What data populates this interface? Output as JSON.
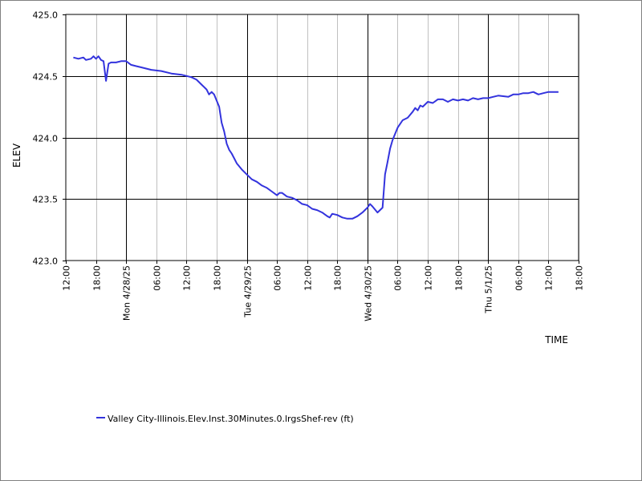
{
  "chart_data": {
    "type": "line",
    "xlabel": "TIME",
    "ylabel": "ELEV",
    "ylim": [
      423.0,
      425.0
    ],
    "xlim": [
      "2025-04-27 12:00",
      "2025-05-01 18:00"
    ],
    "y_ticks": [
      "423.0",
      "423.5",
      "424.0",
      "424.5",
      "425.0"
    ],
    "x_ticks": [
      {
        "t": "2025-04-27 12:00",
        "label": "12:00"
      },
      {
        "t": "2025-04-27 18:00",
        "label": "18:00"
      },
      {
        "t": "2025-04-28 00:00",
        "label": "Mon 4/28/25"
      },
      {
        "t": "2025-04-28 06:00",
        "label": "06:00"
      },
      {
        "t": "2025-04-28 12:00",
        "label": "12:00"
      },
      {
        "t": "2025-04-28 18:00",
        "label": "18:00"
      },
      {
        "t": "2025-04-29 00:00",
        "label": "Tue 4/29/25"
      },
      {
        "t": "2025-04-29 06:00",
        "label": "06:00"
      },
      {
        "t": "2025-04-29 12:00",
        "label": "12:00"
      },
      {
        "t": "2025-04-29 18:00",
        "label": "18:00"
      },
      {
        "t": "2025-04-30 00:00",
        "label": "Wed 4/30/25"
      },
      {
        "t": "2025-04-30 06:00",
        "label": "06:00"
      },
      {
        "t": "2025-04-30 12:00",
        "label": "12:00"
      },
      {
        "t": "2025-04-30 18:00",
        "label": "18:00"
      },
      {
        "t": "2025-05-01 00:00",
        "label": "Thu 5/1/25"
      },
      {
        "t": "2025-05-01 06:00",
        "label": "06:00"
      },
      {
        "t": "2025-05-01 12:00",
        "label": "12:00"
      },
      {
        "t": "2025-05-01 18:00",
        "label": "18:00"
      }
    ],
    "grid": true,
    "legend_position": "bottom-left",
    "series": [
      {
        "name": "Valley City-Illinois.Elev.Inst.30Minutes.0.lrgsShef-rev (ft)",
        "color": "#3333dd",
        "points": [
          [
            "2025-04-27 13:30",
            424.65
          ],
          [
            "2025-04-27 14:30",
            424.64
          ],
          [
            "2025-04-27 15:30",
            424.65
          ],
          [
            "2025-04-27 16:00",
            424.63
          ],
          [
            "2025-04-27 17:00",
            424.64
          ],
          [
            "2025-04-27 17:30",
            424.66
          ],
          [
            "2025-04-27 18:00",
            424.64
          ],
          [
            "2025-04-27 18:30",
            424.66
          ],
          [
            "2025-04-27 19:00",
            424.63
          ],
          [
            "2025-04-27 19:30",
            424.62
          ],
          [
            "2025-04-27 20:00",
            424.46
          ],
          [
            "2025-04-27 20:30",
            424.6
          ],
          [
            "2025-04-27 21:00",
            424.61
          ],
          [
            "2025-04-27 22:00",
            424.61
          ],
          [
            "2025-04-27 23:00",
            424.62
          ],
          [
            "2025-04-28 00:00",
            424.62
          ],
          [
            "2025-04-28 01:00",
            424.59
          ],
          [
            "2025-04-28 02:00",
            424.58
          ],
          [
            "2025-04-28 03:00",
            424.57
          ],
          [
            "2025-04-28 05:00",
            424.55
          ],
          [
            "2025-04-28 07:00",
            424.54
          ],
          [
            "2025-04-28 09:00",
            424.52
          ],
          [
            "2025-04-28 11:00",
            424.51
          ],
          [
            "2025-04-28 13:00",
            424.49
          ],
          [
            "2025-04-28 14:00",
            424.47
          ],
          [
            "2025-04-28 15:00",
            424.43
          ],
          [
            "2025-04-28 16:00",
            424.39
          ],
          [
            "2025-04-28 16:30",
            424.35
          ],
          [
            "2025-04-28 17:00",
            424.37
          ],
          [
            "2025-04-28 17:30",
            424.35
          ],
          [
            "2025-04-28 18:30",
            424.25
          ],
          [
            "2025-04-28 19:00",
            424.12
          ],
          [
            "2025-04-28 19:30",
            424.05
          ],
          [
            "2025-04-28 20:00",
            423.95
          ],
          [
            "2025-04-28 20:30",
            423.9
          ],
          [
            "2025-04-28 21:00",
            423.87
          ],
          [
            "2025-04-28 21:30",
            423.83
          ],
          [
            "2025-04-28 22:00",
            423.79
          ],
          [
            "2025-04-28 23:00",
            423.74
          ],
          [
            "2025-04-29 00:00",
            423.7
          ],
          [
            "2025-04-29 01:00",
            423.66
          ],
          [
            "2025-04-29 02:00",
            423.64
          ],
          [
            "2025-04-29 03:00",
            423.61
          ],
          [
            "2025-04-29 04:00",
            423.59
          ],
          [
            "2025-04-29 05:00",
            423.56
          ],
          [
            "2025-04-29 06:00",
            423.53
          ],
          [
            "2025-04-29 06:30",
            423.55
          ],
          [
            "2025-04-29 07:00",
            423.55
          ],
          [
            "2025-04-29 08:00",
            423.52
          ],
          [
            "2025-04-29 09:00",
            423.51
          ],
          [
            "2025-04-29 10:00",
            423.49
          ],
          [
            "2025-04-29 11:00",
            423.46
          ],
          [
            "2025-04-29 12:00",
            423.45
          ],
          [
            "2025-04-29 13:00",
            423.42
          ],
          [
            "2025-04-29 14:00",
            423.41
          ],
          [
            "2025-04-29 15:00",
            423.39
          ],
          [
            "2025-04-29 16:00",
            423.36
          ],
          [
            "2025-04-29 16:30",
            423.35
          ],
          [
            "2025-04-29 17:00",
            423.38
          ],
          [
            "2025-04-29 18:00",
            423.37
          ],
          [
            "2025-04-29 19:00",
            423.35
          ],
          [
            "2025-04-29 20:00",
            423.34
          ],
          [
            "2025-04-29 21:00",
            423.34
          ],
          [
            "2025-04-29 22:00",
            423.36
          ],
          [
            "2025-04-29 23:00",
            423.39
          ],
          [
            "2025-04-30 00:00",
            423.43
          ],
          [
            "2025-04-30 00:30",
            423.46
          ],
          [
            "2025-04-30 01:00",
            423.44
          ],
          [
            "2025-04-30 02:00",
            423.39
          ],
          [
            "2025-04-30 03:00",
            423.43
          ],
          [
            "2025-04-30 03:30",
            423.7
          ],
          [
            "2025-04-30 04:00",
            423.8
          ],
          [
            "2025-04-30 04:30",
            423.91
          ],
          [
            "2025-04-30 05:00",
            423.98
          ],
          [
            "2025-04-30 06:00",
            424.08
          ],
          [
            "2025-04-30 07:00",
            424.14
          ],
          [
            "2025-04-30 08:00",
            424.16
          ],
          [
            "2025-04-30 09:00",
            424.21
          ],
          [
            "2025-04-30 09:30",
            424.24
          ],
          [
            "2025-04-30 10:00",
            424.22
          ],
          [
            "2025-04-30 10:30",
            424.26
          ],
          [
            "2025-04-30 11:00",
            424.25
          ],
          [
            "2025-04-30 12:00",
            424.29
          ],
          [
            "2025-04-30 13:00",
            424.28
          ],
          [
            "2025-04-30 14:00",
            424.31
          ],
          [
            "2025-04-30 15:00",
            424.31
          ],
          [
            "2025-04-30 16:00",
            424.29
          ],
          [
            "2025-04-30 17:00",
            424.31
          ],
          [
            "2025-04-30 18:00",
            424.3
          ],
          [
            "2025-04-30 19:00",
            424.31
          ],
          [
            "2025-04-30 20:00",
            424.3
          ],
          [
            "2025-04-30 21:00",
            424.32
          ],
          [
            "2025-04-30 22:00",
            424.31
          ],
          [
            "2025-04-30 23:00",
            424.32
          ],
          [
            "2025-05-01 00:00",
            424.32
          ],
          [
            "2025-05-01 01:00",
            424.33
          ],
          [
            "2025-05-01 02:00",
            424.34
          ],
          [
            "2025-05-01 04:00",
            424.33
          ],
          [
            "2025-05-01 05:00",
            424.35
          ],
          [
            "2025-05-01 06:00",
            424.35
          ],
          [
            "2025-05-01 07:00",
            424.36
          ],
          [
            "2025-05-01 08:00",
            424.36
          ],
          [
            "2025-05-01 09:00",
            424.37
          ],
          [
            "2025-05-01 10:00",
            424.35
          ],
          [
            "2025-05-01 11:00",
            424.36
          ],
          [
            "2025-05-01 12:00",
            424.37
          ],
          [
            "2025-05-01 13:00",
            424.37
          ],
          [
            "2025-05-01 14:00",
            424.37
          ]
        ]
      }
    ]
  }
}
